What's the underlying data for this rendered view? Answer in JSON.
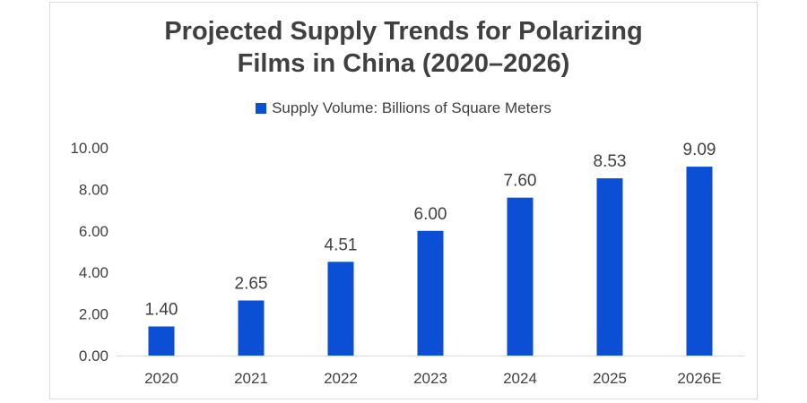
{
  "chart_data": {
    "type": "bar",
    "title_lines": [
      "Projected Supply Trends for Polarizing",
      "Films in China (2020–2026)"
    ],
    "legend": "Supply Volume: Billions of Square Meters",
    "categories": [
      "2020",
      "2021",
      "2022",
      "2023",
      "2024",
      "2025",
      "2026E"
    ],
    "series": [
      {
        "name": "Supply Volume: Billions of Square Meters",
        "values": [
          1.4,
          2.65,
          4.51,
          6.0,
          7.6,
          8.53,
          9.09
        ]
      }
    ],
    "data_labels": [
      "1.40",
      "2.65",
      "4.51",
      "6.00",
      "7.60",
      "8.53",
      "9.09"
    ],
    "y_ticks": [
      "0.00",
      "2.00",
      "4.00",
      "6.00",
      "8.00",
      "10.00"
    ],
    "ylim": [
      0,
      10
    ],
    "grid": false,
    "legend_position": "top-center",
    "bar_color": "#0b4fd4"
  }
}
